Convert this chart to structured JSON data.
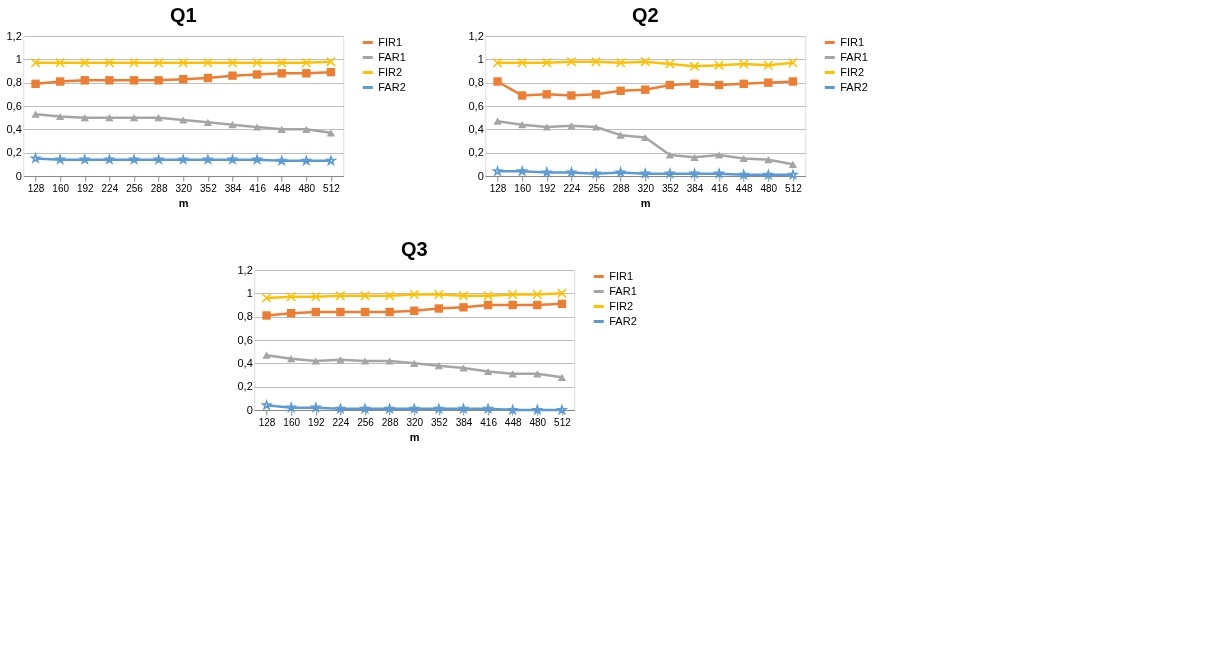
{
  "chart_data": [
    {
      "type": "line",
      "title": "Q1",
      "xlabel": "m",
      "categories": [
        "128",
        "160",
        "192",
        "224",
        "256",
        "288",
        "320",
        "352",
        "384",
        "416",
        "448",
        "480",
        "512"
      ],
      "ylim": [
        0,
        1.2
      ],
      "yticks": [
        0,
        {
          "value": 0.2,
          "label": "0,2"
        },
        {
          "value": 0.4,
          "label": "0,4"
        },
        {
          "value": 0.6,
          "label": "0,6"
        },
        {
          "value": 0.8,
          "label": "0,8"
        },
        1,
        {
          "value": 1.2,
          "label": "1,2"
        }
      ],
      "grid": "y",
      "legend": "right",
      "series": [
        {
          "name": "FIR1",
          "color": "#ed7d31",
          "marker": "square",
          "values": [
            0.79,
            0.81,
            0.82,
            0.82,
            0.82,
            0.82,
            0.83,
            0.84,
            0.86,
            0.87,
            0.88,
            0.88,
            0.89
          ]
        },
        {
          "name": "FAR1",
          "color": "#a5a5a5",
          "marker": "triangle",
          "values": [
            0.53,
            0.51,
            0.5,
            0.5,
            0.5,
            0.5,
            0.48,
            0.46,
            0.44,
            0.42,
            0.4,
            0.4,
            0.37
          ]
        },
        {
          "name": "FIR2",
          "color": "#ffc000",
          "marker": "cross",
          "values": [
            0.97,
            0.97,
            0.97,
            0.97,
            0.97,
            0.97,
            0.97,
            0.97,
            0.97,
            0.97,
            0.97,
            0.97,
            0.98
          ]
        },
        {
          "name": "FAR2",
          "color": "#5b9bd5",
          "marker": "star",
          "values": [
            0.15,
            0.14,
            0.14,
            0.14,
            0.14,
            0.14,
            0.14,
            0.14,
            0.14,
            0.14,
            0.13,
            0.13,
            0.13
          ]
        }
      ]
    },
    {
      "type": "line",
      "title": "Q2",
      "xlabel": "m",
      "categories": [
        "128",
        "160",
        "192",
        "224",
        "256",
        "288",
        "320",
        "352",
        "384",
        "416",
        "448",
        "480",
        "512"
      ],
      "ylim": [
        0,
        1.2
      ],
      "yticks": [
        0,
        {
          "value": 0.2,
          "label": "0,2"
        },
        {
          "value": 0.4,
          "label": "0,4"
        },
        {
          "value": 0.6,
          "label": "0,6"
        },
        {
          "value": 0.8,
          "label": "0,8"
        },
        1,
        {
          "value": 1.2,
          "label": "1,2"
        }
      ],
      "grid": "y",
      "legend": "right",
      "series": [
        {
          "name": "FIR1",
          "color": "#ed7d31",
          "marker": "square",
          "values": [
            0.81,
            0.69,
            0.7,
            0.69,
            0.7,
            0.73,
            0.74,
            0.78,
            0.79,
            0.78,
            0.79,
            0.8,
            0.81
          ]
        },
        {
          "name": "FAR1",
          "color": "#a5a5a5",
          "marker": "triangle",
          "values": [
            0.47,
            0.44,
            0.42,
            0.43,
            0.42,
            0.35,
            0.33,
            0.18,
            0.16,
            0.18,
            0.15,
            0.14,
            0.1
          ]
        },
        {
          "name": "FIR2",
          "color": "#ffc000",
          "marker": "cross",
          "values": [
            0.97,
            0.97,
            0.97,
            0.98,
            0.98,
            0.97,
            0.98,
            0.96,
            0.94,
            0.95,
            0.96,
            0.95,
            0.97
          ]
        },
        {
          "name": "FAR2",
          "color": "#5b9bd5",
          "marker": "star",
          "values": [
            0.04,
            0.04,
            0.03,
            0.03,
            0.02,
            0.03,
            0.02,
            0.02,
            0.02,
            0.02,
            0.01,
            0.01,
            0.01
          ]
        }
      ]
    },
    {
      "type": "line",
      "title": "Q3",
      "xlabel": "m",
      "categories": [
        "128",
        "160",
        "192",
        "224",
        "256",
        "288",
        "320",
        "352",
        "384",
        "416",
        "448",
        "480",
        "512"
      ],
      "ylim": [
        0,
        1.2
      ],
      "yticks": [
        0,
        {
          "value": 0.2,
          "label": "0,2"
        },
        {
          "value": 0.4,
          "label": "0,4"
        },
        {
          "value": 0.6,
          "label": "0,6"
        },
        {
          "value": 0.8,
          "label": "0,8"
        },
        1,
        {
          "value": 1.2,
          "label": "1,2"
        }
      ],
      "grid": "y",
      "legend": "right",
      "series": [
        {
          "name": "FIR1",
          "color": "#ed7d31",
          "marker": "square",
          "values": [
            0.81,
            0.83,
            0.84,
            0.84,
            0.84,
            0.84,
            0.85,
            0.87,
            0.88,
            0.9,
            0.9,
            0.9,
            0.91
          ]
        },
        {
          "name": "FAR1",
          "color": "#a5a5a5",
          "marker": "triangle",
          "values": [
            0.47,
            0.44,
            0.42,
            0.43,
            0.42,
            0.42,
            0.4,
            0.38,
            0.36,
            0.33,
            0.31,
            0.31,
            0.28
          ]
        },
        {
          "name": "FIR2",
          "color": "#ffc000",
          "marker": "cross",
          "values": [
            0.96,
            0.97,
            0.97,
            0.98,
            0.98,
            0.98,
            0.99,
            0.99,
            0.98,
            0.98,
            0.99,
            0.99,
            1.0
          ]
        },
        {
          "name": "FAR2",
          "color": "#5b9bd5",
          "marker": "star",
          "values": [
            0.04,
            0.02,
            0.02,
            0.01,
            0.01,
            0.01,
            0.01,
            0.01,
            0.01,
            0.01,
            0.0,
            0.0,
            0.0
          ]
        }
      ]
    }
  ]
}
